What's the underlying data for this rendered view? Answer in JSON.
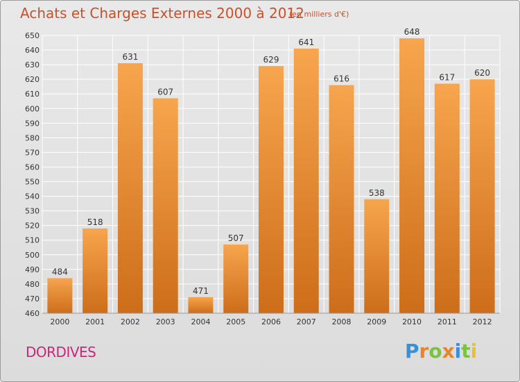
{
  "title": "Achats et Charges Externes 2000 à 2012",
  "subtitle": "(en milliers d'€)",
  "commune": "DORDIVES",
  "brand": {
    "letters": [
      "P",
      "r",
      "o",
      "x",
      "i",
      "t",
      "i"
    ],
    "colors": [
      "#3a8fd6",
      "#e8842a",
      "#7cc242",
      "#e8842a",
      "#3a8fd6",
      "#7cc242",
      "#e8c030"
    ]
  },
  "colors": {
    "bar_light": "#f7a54e",
    "bar_dark": "#cd6d1a",
    "grid": "#ffffff",
    "axis_text": "#333333",
    "title": "#c8502a",
    "commune": "#c8287a"
  },
  "chart_data": {
    "type": "bar",
    "categories": [
      "2000",
      "2001",
      "2002",
      "2003",
      "2004",
      "2005",
      "2006",
      "2007",
      "2008",
      "2009",
      "2010",
      "2011",
      "2012"
    ],
    "values": [
      484,
      518,
      631,
      607,
      471,
      507,
      629,
      641,
      616,
      538,
      648,
      617,
      620
    ],
    "ylim": [
      460,
      650
    ],
    "yticks": [
      460,
      470,
      480,
      490,
      500,
      510,
      520,
      530,
      540,
      550,
      560,
      570,
      580,
      590,
      600,
      610,
      620,
      630,
      640,
      650
    ],
    "grid": true,
    "xlabel": "",
    "ylabel": ""
  }
}
